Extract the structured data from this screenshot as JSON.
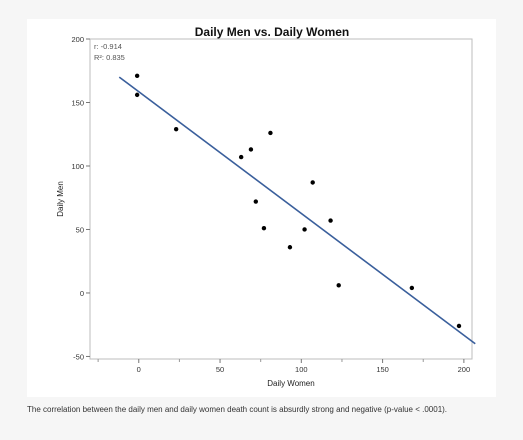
{
  "caption": "The correlation between the daily men and daily women death count is absurdly strong and negative (p-value < .0001).",
  "chart_data": {
    "type": "scatter",
    "title": "Daily Men vs. Daily Women",
    "xlabel": "Daily Women",
    "ylabel": "Daily Men",
    "xlim": [
      -30,
      205
    ],
    "ylim": [
      -52,
      200
    ],
    "xticks": [
      0,
      50,
      100,
      150,
      200
    ],
    "yticks": [
      -50,
      0,
      50,
      100,
      150,
      200
    ],
    "grid": false,
    "annotations": [
      "r: -0.914",
      "R²: 0.835"
    ],
    "points": [
      {
        "x": -1,
        "y": 171
      },
      {
        "x": -1,
        "y": 156
      },
      {
        "x": 23,
        "y": 129
      },
      {
        "x": 63,
        "y": 107
      },
      {
        "x": 69,
        "y": 113
      },
      {
        "x": 72,
        "y": 72
      },
      {
        "x": 77,
        "y": 51
      },
      {
        "x": 81,
        "y": 126
      },
      {
        "x": 93,
        "y": 36
      },
      {
        "x": 102,
        "y": 50
      },
      {
        "x": 107,
        "y": 87
      },
      {
        "x": 118,
        "y": 57
      },
      {
        "x": 123,
        "y": 6
      },
      {
        "x": 168,
        "y": 4
      },
      {
        "x": 197,
        "y": -26
      }
    ],
    "fit_line": {
      "x": [
        -12,
        207
      ],
      "y": [
        170,
        -40
      ]
    },
    "colors": {
      "points": "#000000",
      "fit_line": "#3a5f9c"
    }
  }
}
